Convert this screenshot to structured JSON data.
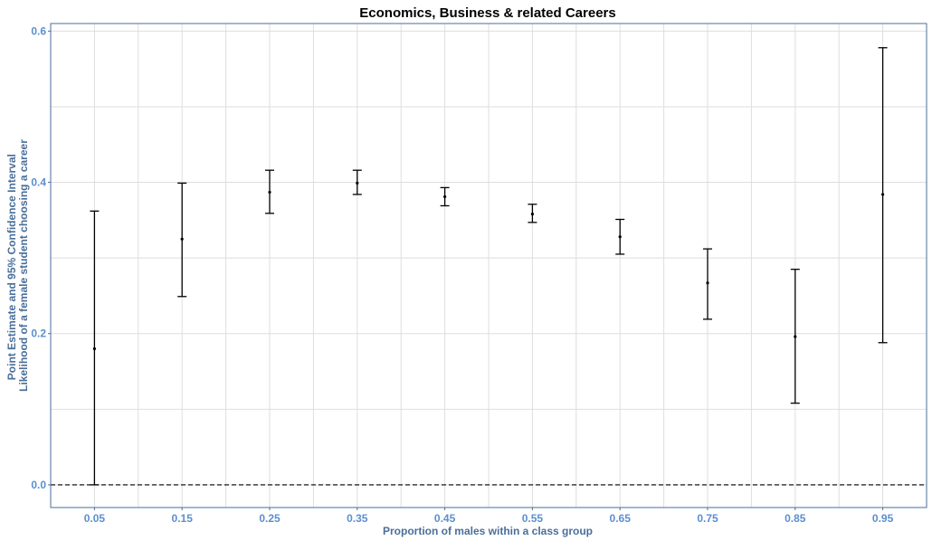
{
  "chart_data": {
    "type": "errorbar",
    "title": "Economics, Business & related Careers",
    "xlabel": "Proportion of males within a class group",
    "ylabel_lines": [
      "Point Estimate and 95% Confidence Interval",
      "Likelihood of a female student choosing a career"
    ],
    "categories": [
      "0.05",
      "0.15",
      "0.25",
      "0.35",
      "0.45",
      "0.55",
      "0.65",
      "0.75",
      "0.85",
      "0.95"
    ],
    "x": [
      0.05,
      0.15,
      0.25,
      0.35,
      0.45,
      0.55,
      0.65,
      0.75,
      0.85,
      0.95
    ],
    "estimate": [
      0.18,
      0.325,
      0.387,
      0.399,
      0.381,
      0.358,
      0.328,
      0.267,
      0.196,
      0.384
    ],
    "lower": [
      0.0,
      0.249,
      0.359,
      0.384,
      0.369,
      0.347,
      0.305,
      0.219,
      0.108,
      0.188
    ],
    "upper": [
      0.362,
      0.399,
      0.416,
      0.416,
      0.393,
      0.371,
      0.351,
      0.312,
      0.285,
      0.578
    ],
    "xlim": [
      0.0,
      1.0
    ],
    "ylim": [
      -0.03,
      0.61
    ],
    "yticks": [
      0.0,
      0.2,
      0.4,
      0.6
    ],
    "ytick_labels": [
      "0.0",
      "0.2",
      "0.4",
      "0.6"
    ],
    "reference_line": {
      "y": 0.0,
      "style": "dashed"
    },
    "grid": true,
    "legend": "none",
    "colors": {
      "tick_label": "#5b8fd0",
      "axis_title": "#4a6f9a",
      "grid": "#dedede",
      "frame": "#4a6f9a",
      "marks": "#000000"
    }
  }
}
